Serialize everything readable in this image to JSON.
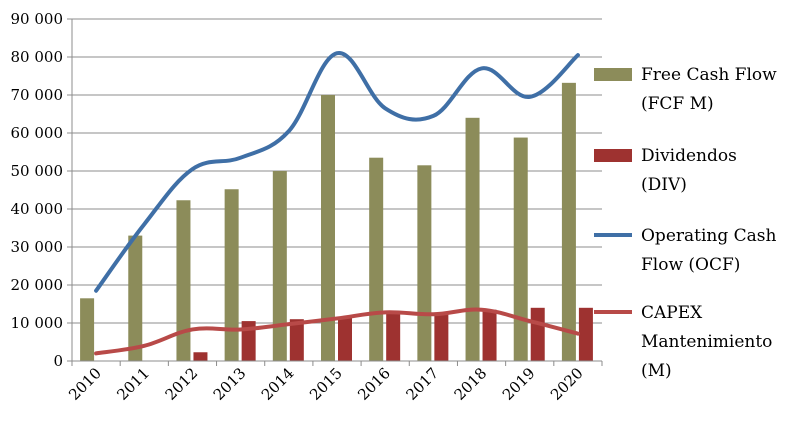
{
  "chart_data": {
    "type": "bar",
    "categories": [
      "2010",
      "2011",
      "2012",
      "2013",
      "2014",
      "2015",
      "2016",
      "2017",
      "2018",
      "2019",
      "2020"
    ],
    "ylim": [
      0,
      90000
    ],
    "y_ticks": [
      0,
      10000,
      20000,
      30000,
      40000,
      50000,
      60000,
      70000,
      80000,
      90000
    ],
    "y_tick_labels": [
      "0",
      "10 000",
      "20 000",
      "30 000",
      "40 000",
      "50 000",
      "60 000",
      "70 000",
      "80 000",
      "90 000"
    ],
    "grid": true,
    "legend_position": "right",
    "bar_series": [
      {
        "name": "Free Cash Flow (FCF M)",
        "legend_lines": [
          "Free Cash Flow",
          "(FCF M)"
        ],
        "color": "#8c8c5a",
        "values": [
          16500,
          33000,
          42300,
          45200,
          50000,
          70000,
          53500,
          51500,
          64000,
          58800,
          73200
        ]
      },
      {
        "name": "Dividendos (DIV)",
        "legend_lines": [
          "Dividendos",
          "(DIV)"
        ],
        "color": "#9e3230",
        "values": [
          0,
          0,
          2300,
          10500,
          11000,
          11500,
          12500,
          12500,
          13500,
          14000,
          14000
        ]
      }
    ],
    "line_series": [
      {
        "name": "Operating Cash Flow (OCF)",
        "legend_lines": [
          "Operating Cash",
          "Flow (OCF)"
        ],
        "color": "#3f6fa6",
        "values": [
          18500,
          36000,
          50500,
          53500,
          60500,
          81000,
          66500,
          64500,
          77000,
          69500,
          80500
        ]
      },
      {
        "name": "CAPEX Mantenimiento (M)",
        "legend_lines": [
          "CAPEX",
          "Mantenimiento",
          "(M)"
        ],
        "color": "#b84a48",
        "values": [
          2000,
          4000,
          8300,
          8300,
          9700,
          11200,
          12800,
          12300,
          13500,
          10500,
          7200
        ]
      }
    ]
  }
}
